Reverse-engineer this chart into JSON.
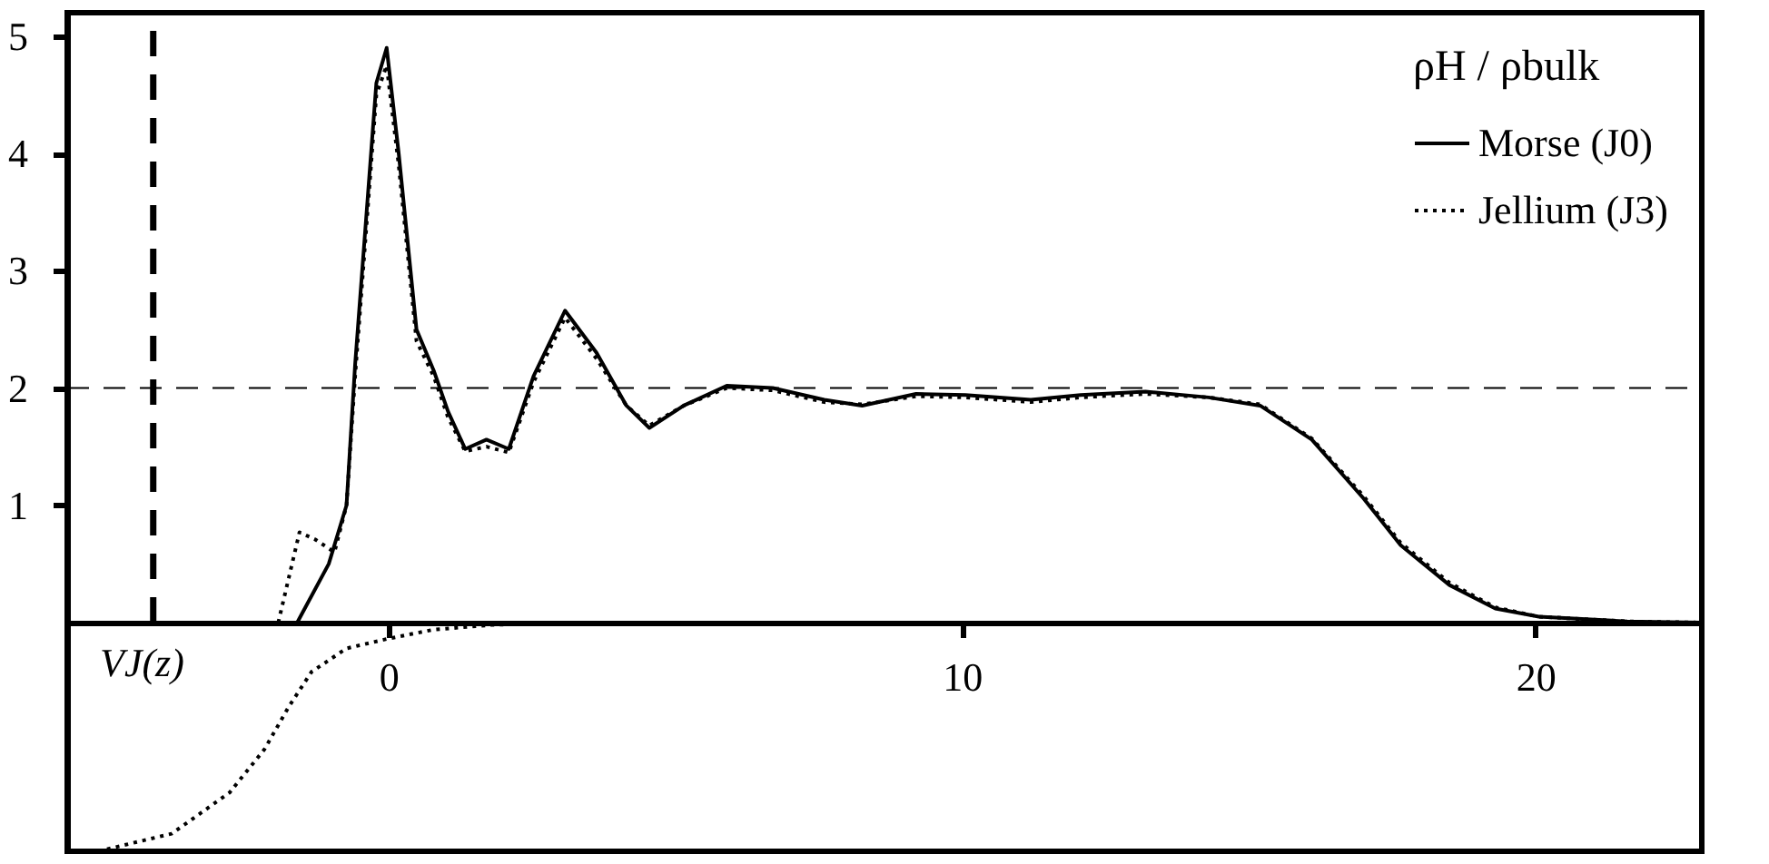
{
  "chart_data": {
    "type": "line",
    "legend_title": "ρH / ρbulk",
    "legend": "top right",
    "xlim": [
      -5.6,
      22.9
    ],
    "ylim": [
      -1.95,
      5.2
    ],
    "xticks": [
      0,
      10,
      20
    ],
    "yticks": [
      1,
      2,
      3,
      4,
      5
    ],
    "grid": false,
    "annotations": [
      "VJ(z)"
    ],
    "ref_lines": [
      {
        "axis": "x",
        "value": -4.1,
        "line_style": "dashed",
        "color": "#000000"
      },
      {
        "axis": "y",
        "value": 2,
        "line_style": "dashed",
        "color": "#000000"
      }
    ],
    "series": [
      {
        "name": "Morse (J0)",
        "color": "#000000",
        "line_style": "solid",
        "x": [
          -1.59,
          -1.04,
          -0.73,
          -0.58,
          -0.21,
          -0.03,
          0.18,
          0.49,
          0.79,
          1.04,
          1.34,
          1.71,
          2.1,
          2.53,
          3.08,
          3.63,
          4.15,
          4.55,
          5.15,
          5.9,
          6.7,
          7.6,
          8.26,
          9.2,
          10.06,
          11.2,
          12.07,
          13.2,
          14.3,
          15.2,
          16.1,
          17.0,
          17.65,
          18.5,
          19.3,
          20.06,
          21.6,
          22.9
        ],
        "values": [
          0,
          0.5,
          1.0,
          2.2,
          4.6,
          4.9,
          4.0,
          2.5,
          2.15,
          1.8,
          1.48,
          1.56,
          1.48,
          2.1,
          2.66,
          2.3,
          1.85,
          1.66,
          1.85,
          2.02,
          2.0,
          1.9,
          1.85,
          1.95,
          1.94,
          1.9,
          1.94,
          1.97,
          1.92,
          1.85,
          1.56,
          1.06,
          0.66,
          0.32,
          0.12,
          0.05,
          0.01,
          0
        ]
      },
      {
        "name": "Jellium (J3)",
        "color": "#000000",
        "line_style": "dotted",
        "x": [
          -1.92,
          -1.55,
          -1.28,
          -0.94,
          -0.73,
          -0.58,
          -0.21,
          -0.03,
          0.18,
          0.49,
          0.79,
          1.04,
          1.34,
          1.71,
          2.1,
          2.53,
          3.08,
          3.63,
          4.15,
          4.55,
          5.15,
          5.9,
          6.7,
          7.6,
          8.26,
          9.2,
          10.06,
          11.2,
          12.07,
          13.2,
          14.3,
          15.2,
          16.1,
          17.0,
          17.65,
          18.5,
          19.3,
          20.06,
          21.6,
          22.9
        ],
        "values": [
          0,
          0.77,
          0.71,
          0.6,
          1.0,
          2.1,
          4.5,
          4.75,
          3.9,
          2.4,
          2.1,
          1.75,
          1.46,
          1.5,
          1.45,
          2.05,
          2.6,
          2.25,
          1.85,
          1.68,
          1.85,
          2.0,
          1.98,
          1.88,
          1.86,
          1.93,
          1.92,
          1.88,
          1.92,
          1.95,
          1.92,
          1.86,
          1.57,
          1.08,
          0.68,
          0.34,
          0.13,
          0.05,
          0.01,
          0
        ]
      },
      {
        "color": "#000000",
        "line_style": "dotted",
        "x": [
          -5.06,
          -3.78,
          -2.77,
          -2.16,
          -1.74,
          -1.34,
          -0.73,
          -0.03,
          0.79,
          1.8,
          3.0
        ],
        "values": [
          -1.95,
          -1.8,
          -1.45,
          -1.08,
          -0.72,
          -0.42,
          -0.22,
          -0.14,
          -0.06,
          -0.02,
          0
        ]
      }
    ]
  }
}
